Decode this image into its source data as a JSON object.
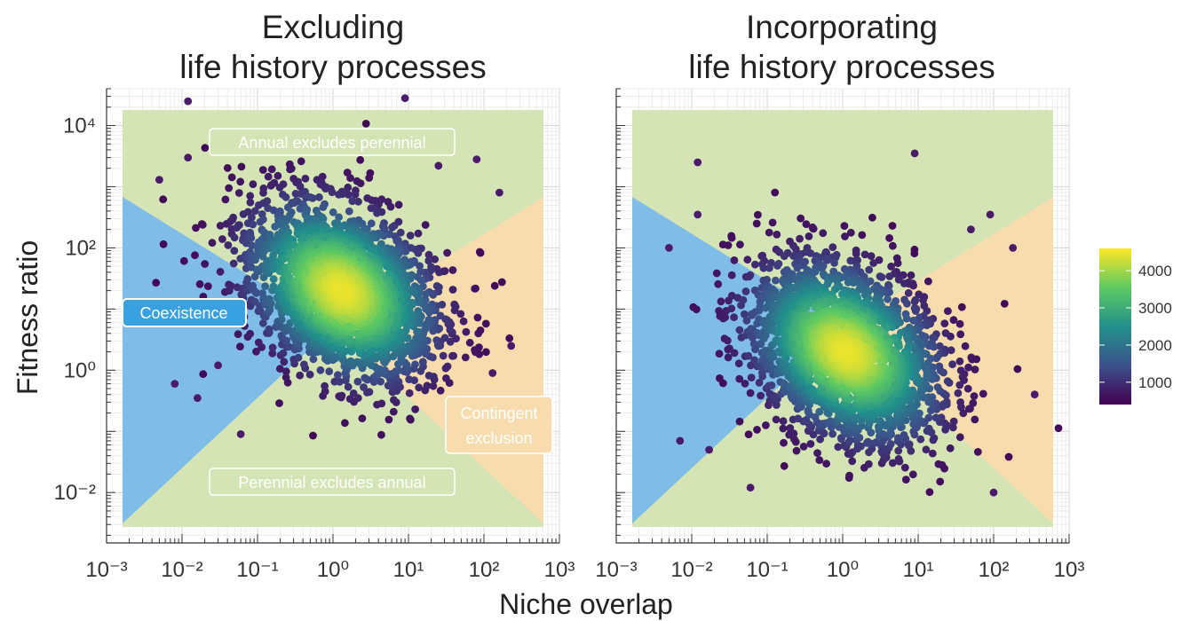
{
  "figure": {
    "ylabel": "Fitness ratio",
    "xlabel": "Niche overlap",
    "colorbar": {
      "ticks": [
        "4000",
        "3000",
        "2000",
        "1000"
      ],
      "range": [
        400,
        4600
      ],
      "colors": [
        "#440154",
        "#3b528b",
        "#21918c",
        "#5ec962",
        "#fde725"
      ]
    },
    "region_colors": {
      "annual_excludes_perennial": "#d4e4b4",
      "perennial_excludes_annual": "#d4e4b4",
      "coexistence": "#7fbce8",
      "contingent_exclusion": "#f7dcae",
      "point": "#4a1a6b"
    }
  },
  "chart_data": [
    {
      "type": "scatter",
      "title_lines": [
        "Excluding",
        "life history processes"
      ],
      "x_scale": "log10",
      "y_scale": "log10",
      "xlim": [
        0.001,
        1000
      ],
      "ylim": [
        0.0015,
        40000
      ],
      "x_tick_labels": [
        "10^-3",
        "10^-2",
        "10^-1",
        "10^0",
        "10^1",
        "10^2",
        "10^3"
      ],
      "y_tick_labels": [
        "10^4",
        "10^2",
        "10^0",
        "10^-2"
      ],
      "x_ticks": [
        0.001,
        0.01,
        0.1,
        1,
        10,
        100,
        1000
      ],
      "y_ticks": [
        10000,
        100,
        1,
        0.01
      ],
      "grid": true,
      "region_labels": {
        "annual_excludes_perennial": "Annual excludes perennial",
        "coexistence": "Coexistence",
        "contingent_exclusion_line1": "Contingent",
        "contingent_exclusion_line2": "exclusion",
        "perennial_excludes_annual": "Perennial excludes annual"
      },
      "density_center": {
        "niche_overlap": 1.3,
        "fitness_ratio": 20
      },
      "density_peak": 4400,
      "outliers": [
        {
          "x": 0.012,
          "y": 25000
        },
        {
          "x": 9.0,
          "y": 28000
        },
        {
          "x": 0.005,
          "y": 1300
        },
        {
          "x": 0.012,
          "y": 3000
        },
        {
          "x": 25,
          "y": 2200
        },
        {
          "x": 80,
          "y": 2800
        },
        {
          "x": 160,
          "y": 800
        },
        {
          "x": 0.008,
          "y": 0.6
        },
        {
          "x": 0.016,
          "y": 0.35
        },
        {
          "x": 0.06,
          "y": 0.09
        },
        {
          "x": 230,
          "y": 2.5
        },
        {
          "x": 130,
          "y": 0.9
        },
        {
          "x": 0.03,
          "y": 1.2
        }
      ]
    },
    {
      "type": "scatter",
      "title_lines": [
        "Incorporating",
        "life history processes"
      ],
      "x_scale": "log10",
      "y_scale": "log10",
      "xlim": [
        0.001,
        1000
      ],
      "ylim": [
        0.0015,
        40000
      ],
      "x_tick_labels": [
        "10^-3",
        "10^-2",
        "10^-1",
        "10^0",
        "10^1",
        "10^2",
        "10^3"
      ],
      "x_ticks": [
        0.001,
        0.01,
        0.1,
        1,
        10,
        100,
        1000
      ],
      "y_ticks": [
        10000,
        100,
        1,
        0.01
      ],
      "grid": true,
      "density_center": {
        "niche_overlap": 1.1,
        "fitness_ratio": 2
      },
      "density_peak": 4400,
      "outliers": [
        {
          "x": 9,
          "y": 3500
        },
        {
          "x": 0.012,
          "y": 2500
        },
        {
          "x": 0.005,
          "y": 100
        },
        {
          "x": 0.012,
          "y": 350
        },
        {
          "x": 350,
          "y": 0.4
        },
        {
          "x": 180,
          "y": 100
        },
        {
          "x": 90,
          "y": 350
        },
        {
          "x": 0.007,
          "y": 0.07
        },
        {
          "x": 0.017,
          "y": 0.05
        },
        {
          "x": 0.06,
          "y": 0.012
        },
        {
          "x": 100,
          "y": 0.01
        },
        {
          "x": 50,
          "y": 200
        }
      ]
    }
  ]
}
